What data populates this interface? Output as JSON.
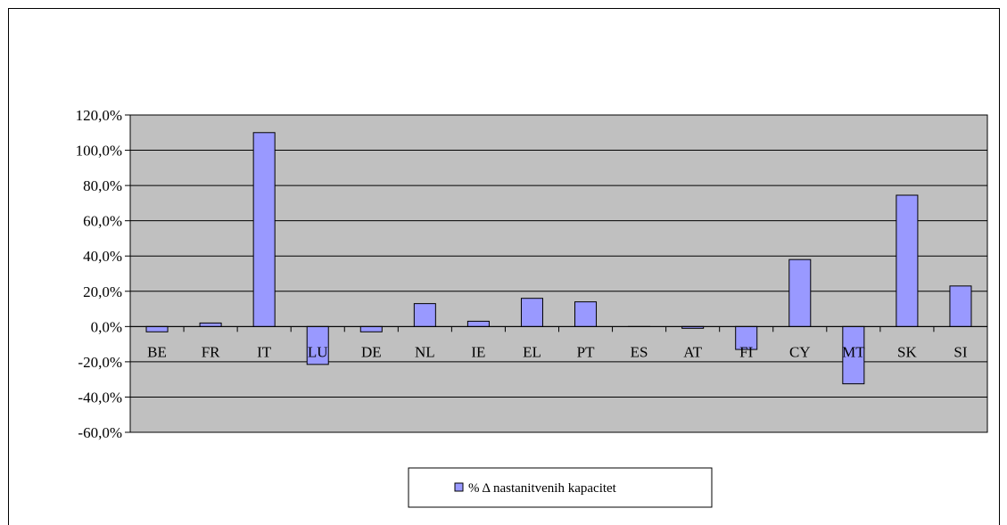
{
  "chart_data": {
    "type": "bar",
    "categories": [
      "BE",
      "FR",
      "IT",
      "LU",
      "DE",
      "NL",
      "IE",
      "EL",
      "PT",
      "ES",
      "AT",
      "FI",
      "CY",
      "MT",
      "SK",
      "SI"
    ],
    "series": [
      {
        "name": "% Δ nastanitvenih kapacitet",
        "values": [
          -3.0,
          2.0,
          110.0,
          -21.5,
          -3.0,
          13.0,
          3.0,
          16.0,
          14.0,
          0.0,
          -1.0,
          -13.0,
          38.0,
          -32.5,
          74.5,
          23.0
        ]
      }
    ],
    "y_ticks": [
      "120,0%",
      "100,0%",
      "80,0%",
      "60,0%",
      "40,0%",
      "20,0%",
      "0,0%",
      "-20,0%",
      "-40,0%",
      "-60,0%"
    ],
    "ylim": [
      -60,
      120
    ],
    "grid": true,
    "legend_position": "bottom",
    "colors": {
      "plot_background": "#c0c0c0",
      "bar_fill": "#9999ff",
      "bar_stroke": "#000000",
      "grid": "#000000"
    }
  }
}
